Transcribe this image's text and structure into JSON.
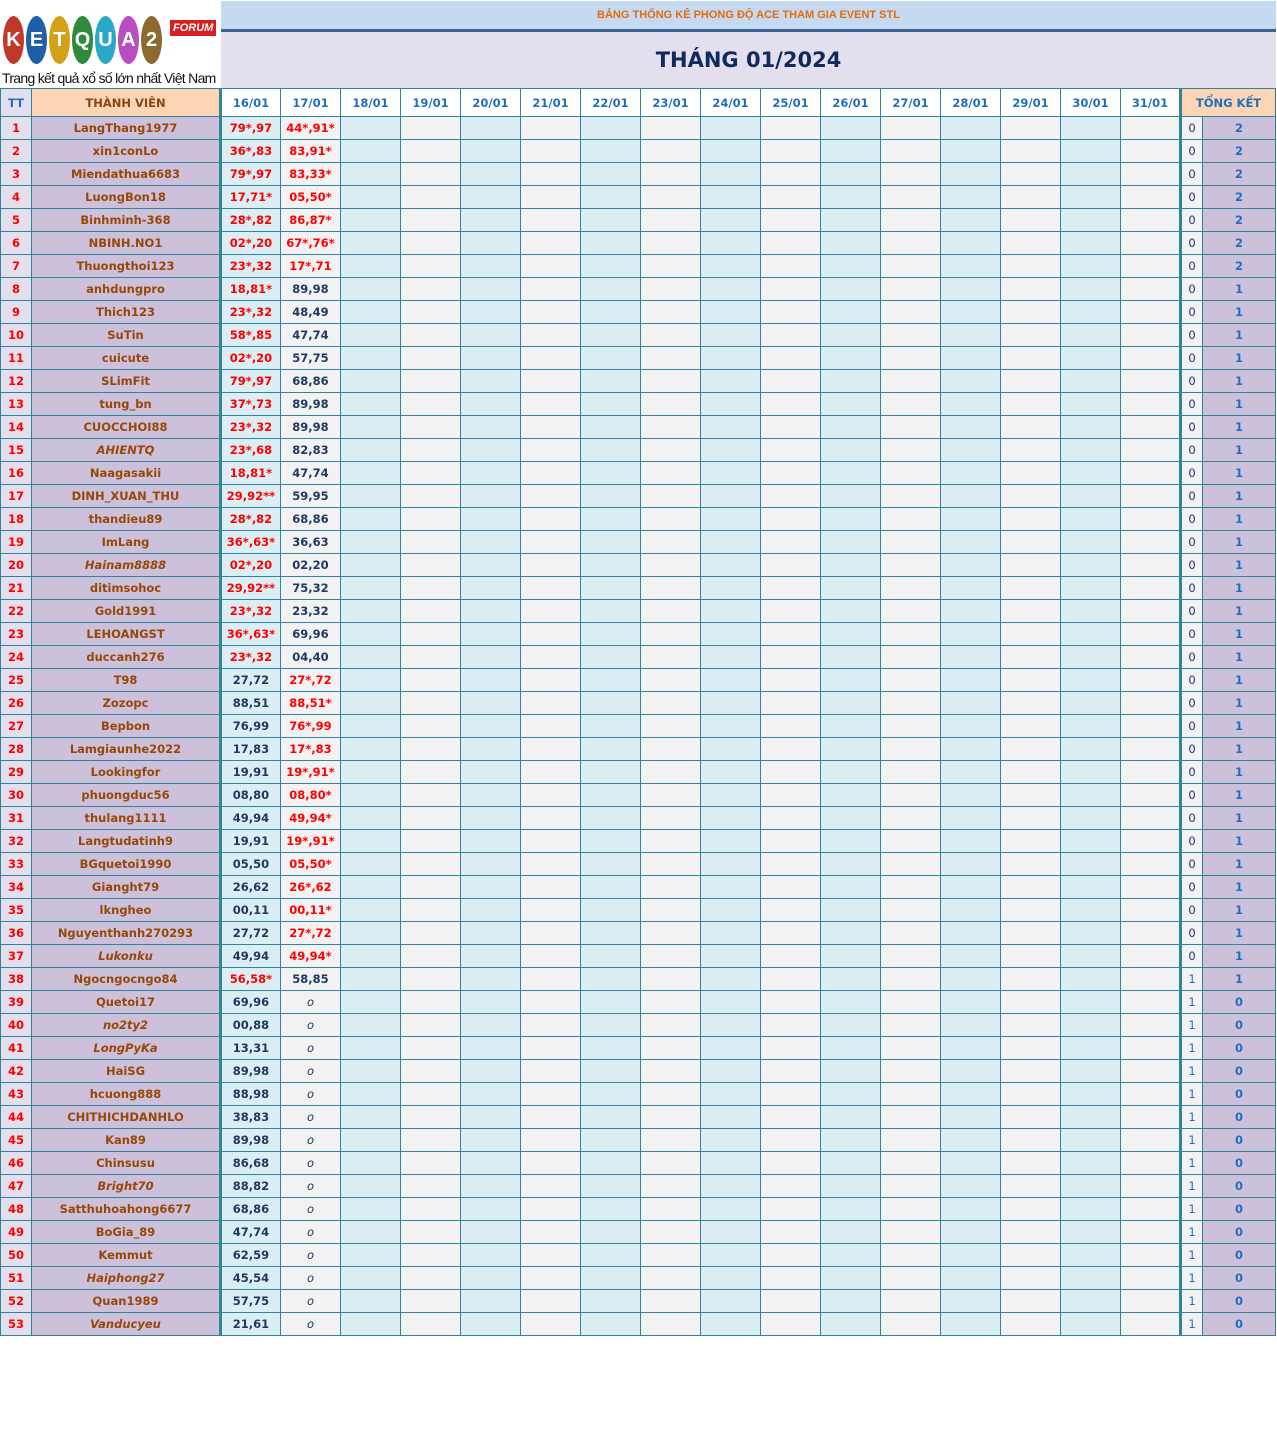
{
  "logo": {
    "text": "KETQUA2",
    "badge": "FORUM",
    "slogan": "Trang kết quả xổ số lớn nhất Việt Nam"
  },
  "header": {
    "title": "BẢNG THỐNG KÊ PHONG ĐỘ ACE THAM GIA EVENT STL",
    "month": "THÁNG 01/2024"
  },
  "columns": {
    "tt": "TT",
    "member": "THÀNH VIÊN",
    "total": "TỔNG KẾT",
    "dates": [
      "16/01",
      "17/01",
      "18/01",
      "19/01",
      "20/01",
      "21/01",
      "22/01",
      "23/01",
      "24/01",
      "25/01",
      "26/01",
      "27/01",
      "28/01",
      "29/01",
      "30/01",
      "31/01"
    ]
  },
  "colors": {
    "hit": "#ff0000",
    "normal": "#1f3864",
    "name": "#974706",
    "border": "#31849b"
  },
  "rows": [
    {
      "tt": "1",
      "name": "LangThang1977",
      "italic": false,
      "d": [
        "79*,97",
        "44*,91*"
      ],
      "miss": "0",
      "total": "2"
    },
    {
      "tt": "2",
      "name": "xin1conLo",
      "italic": false,
      "d": [
        "36*,83",
        "83,91*"
      ],
      "miss": "0",
      "total": "2"
    },
    {
      "tt": "3",
      "name": "Miendathua6683",
      "italic": false,
      "d": [
        "79*,97",
        "83,33*"
      ],
      "miss": "0",
      "total": "2"
    },
    {
      "tt": "4",
      "name": "LuongBon18",
      "italic": false,
      "d": [
        "17,71*",
        "05,50*"
      ],
      "miss": "0",
      "total": "2"
    },
    {
      "tt": "5",
      "name": "Binhminh-368",
      "italic": false,
      "d": [
        "28*,82",
        "86,87*"
      ],
      "miss": "0",
      "total": "2"
    },
    {
      "tt": "6",
      "name": "NBINH.NO1",
      "italic": false,
      "d": [
        "02*,20",
        "67*,76*"
      ],
      "miss": "0",
      "total": "2"
    },
    {
      "tt": "7",
      "name": "Thuongthoi123",
      "italic": false,
      "d": [
        "23*,32",
        "17*,71"
      ],
      "miss": "0",
      "total": "2"
    },
    {
      "tt": "8",
      "name": "anhdungpro",
      "italic": false,
      "d": [
        "18,81*",
        "89,98"
      ],
      "miss": "0",
      "total": "1"
    },
    {
      "tt": "9",
      "name": "Thich123",
      "italic": false,
      "d": [
        "23*,32",
        "48,49"
      ],
      "miss": "0",
      "total": "1"
    },
    {
      "tt": "10",
      "name": "SuTin",
      "italic": false,
      "d": [
        "58*,85",
        "47,74"
      ],
      "miss": "0",
      "total": "1"
    },
    {
      "tt": "11",
      "name": "cuicute",
      "italic": false,
      "d": [
        "02*,20",
        "57,75"
      ],
      "miss": "0",
      "total": "1"
    },
    {
      "tt": "12",
      "name": "SLimFit",
      "italic": false,
      "d": [
        "79*,97",
        "68,86"
      ],
      "miss": "0",
      "total": "1"
    },
    {
      "tt": "13",
      "name": "tung_bn",
      "italic": false,
      "d": [
        "37*,73",
        "89,98"
      ],
      "miss": "0",
      "total": "1"
    },
    {
      "tt": "14",
      "name": "CUOCCHOI88",
      "italic": false,
      "d": [
        "23*,32",
        "89,98"
      ],
      "miss": "0",
      "total": "1"
    },
    {
      "tt": "15",
      "name": "AHIENTQ",
      "italic": true,
      "d": [
        "23*,68",
        "82,83"
      ],
      "miss": "0",
      "total": "1"
    },
    {
      "tt": "16",
      "name": "Naagasakii",
      "italic": false,
      "d": [
        "18,81*",
        "47,74"
      ],
      "miss": "0",
      "total": "1"
    },
    {
      "tt": "17",
      "name": "DINH_XUAN_THU",
      "italic": false,
      "d": [
        "29,92**",
        "59,95"
      ],
      "miss": "0",
      "total": "1"
    },
    {
      "tt": "18",
      "name": "thandieu89",
      "italic": false,
      "d": [
        "28*,82",
        "68,86"
      ],
      "miss": "0",
      "total": "1"
    },
    {
      "tt": "19",
      "name": "ImLang",
      "italic": false,
      "d": [
        "36*,63*",
        "36,63"
      ],
      "miss": "0",
      "total": "1"
    },
    {
      "tt": "20",
      "name": "Hainam8888",
      "italic": true,
      "d": [
        "02*,20",
        "02,20"
      ],
      "miss": "0",
      "total": "1"
    },
    {
      "tt": "21",
      "name": "ditimsohoc",
      "italic": false,
      "d": [
        "29,92**",
        "75,32"
      ],
      "miss": "0",
      "total": "1"
    },
    {
      "tt": "22",
      "name": "Gold1991",
      "italic": false,
      "d": [
        "23*,32",
        "23,32"
      ],
      "miss": "0",
      "total": "1"
    },
    {
      "tt": "23",
      "name": "LEHOANGST",
      "italic": false,
      "d": [
        "36*,63*",
        "69,96"
      ],
      "miss": "0",
      "total": "1"
    },
    {
      "tt": "24",
      "name": "duccanh276",
      "italic": false,
      "d": [
        "23*,32",
        "04,40"
      ],
      "miss": "0",
      "total": "1"
    },
    {
      "tt": "25",
      "name": "T98",
      "italic": false,
      "d": [
        "27,72",
        "27*,72"
      ],
      "miss": "0",
      "total": "1"
    },
    {
      "tt": "26",
      "name": "Zozopc",
      "italic": false,
      "d": [
        "88,51",
        "88,51*"
      ],
      "miss": "0",
      "total": "1"
    },
    {
      "tt": "27",
      "name": "Bepbon",
      "italic": false,
      "d": [
        "76,99",
        "76*,99"
      ],
      "miss": "0",
      "total": "1"
    },
    {
      "tt": "28",
      "name": "Lamgiaunhe2022",
      "italic": false,
      "d": [
        "17,83",
        "17*,83"
      ],
      "miss": "0",
      "total": "1"
    },
    {
      "tt": "29",
      "name": "Lookingfor",
      "italic": false,
      "d": [
        "19,91",
        "19*,91*"
      ],
      "miss": "0",
      "total": "1"
    },
    {
      "tt": "30",
      "name": "phuongduc56",
      "italic": false,
      "d": [
        "08,80",
        "08,80*"
      ],
      "miss": "0",
      "total": "1"
    },
    {
      "tt": "31",
      "name": "thulang1111",
      "italic": false,
      "d": [
        "49,94",
        "49,94*"
      ],
      "miss": "0",
      "total": "1"
    },
    {
      "tt": "32",
      "name": "Langtudatinh9",
      "italic": false,
      "d": [
        "19,91",
        "19*,91*"
      ],
      "miss": "0",
      "total": "1"
    },
    {
      "tt": "33",
      "name": "BGquetoi1990",
      "italic": false,
      "d": [
        "05,50",
        "05,50*"
      ],
      "miss": "0",
      "total": "1"
    },
    {
      "tt": "34",
      "name": "Gianght79",
      "italic": false,
      "d": [
        "26,62",
        "26*,62"
      ],
      "miss": "0",
      "total": "1"
    },
    {
      "tt": "35",
      "name": "lkngheo",
      "italic": false,
      "d": [
        "00,11",
        "00,11*"
      ],
      "miss": "0",
      "total": "1"
    },
    {
      "tt": "36",
      "name": "Nguyenthanh270293",
      "italic": false,
      "d": [
        "27,72",
        "27*,72"
      ],
      "miss": "0",
      "total": "1"
    },
    {
      "tt": "37",
      "name": "Lukonku",
      "italic": true,
      "d": [
        "49,94",
        "49,94*"
      ],
      "miss": "0",
      "total": "1"
    },
    {
      "tt": "38",
      "name": "Ngocngocngo84",
      "italic": false,
      "d": [
        "56,58*",
        "58,85"
      ],
      "miss": "1",
      "total": "1"
    },
    {
      "tt": "39",
      "name": "Quetoi17",
      "italic": false,
      "d": [
        "69,96",
        "o"
      ],
      "miss": "1",
      "total": "0"
    },
    {
      "tt": "40",
      "name": "no2ty2",
      "italic": true,
      "d": [
        "00,88",
        "o"
      ],
      "miss": "1",
      "total": "0"
    },
    {
      "tt": "41",
      "name": "LongPyKa",
      "italic": true,
      "d": [
        "13,31",
        "o"
      ],
      "miss": "1",
      "total": "0"
    },
    {
      "tt": "42",
      "name": "HaiSG",
      "italic": false,
      "d": [
        "89,98",
        "o"
      ],
      "miss": "1",
      "total": "0"
    },
    {
      "tt": "43",
      "name": "hcuong888",
      "italic": false,
      "d": [
        "88,98",
        "o"
      ],
      "miss": "1",
      "total": "0"
    },
    {
      "tt": "44",
      "name": "CHITHICHDANHLO",
      "italic": false,
      "d": [
        "38,83",
        "o"
      ],
      "miss": "1",
      "total": "0"
    },
    {
      "tt": "45",
      "name": "Kan89",
      "italic": false,
      "d": [
        "89,98",
        "o"
      ],
      "miss": "1",
      "total": "0"
    },
    {
      "tt": "46",
      "name": "Chinsusu",
      "italic": false,
      "d": [
        "86,68",
        "o"
      ],
      "miss": "1",
      "total": "0"
    },
    {
      "tt": "47",
      "name": "Bright70",
      "italic": true,
      "d": [
        "88,82",
        "o"
      ],
      "miss": "1",
      "total": "0"
    },
    {
      "tt": "48",
      "name": "Satthuhoahong6677",
      "italic": false,
      "d": [
        "68,86",
        "o"
      ],
      "miss": "1",
      "total": "0"
    },
    {
      "tt": "49",
      "name": "BoGia_89",
      "italic": false,
      "d": [
        "47,74",
        "o"
      ],
      "miss": "1",
      "total": "0"
    },
    {
      "tt": "50",
      "name": "Kemmut",
      "italic": false,
      "d": [
        "62,59",
        "o"
      ],
      "miss": "1",
      "total": "0"
    },
    {
      "tt": "51",
      "name": "Haiphong27",
      "italic": true,
      "d": [
        "45,54",
        "o"
      ],
      "miss": "1",
      "total": "0"
    },
    {
      "tt": "52",
      "name": "Quan1989",
      "italic": false,
      "d": [
        "57,75",
        "o"
      ],
      "miss": "1",
      "total": "0"
    },
    {
      "tt": "53",
      "name": "Vanducyeu",
      "italic": true,
      "d": [
        "21,61",
        "o"
      ],
      "miss": "1",
      "total": "0"
    }
  ]
}
